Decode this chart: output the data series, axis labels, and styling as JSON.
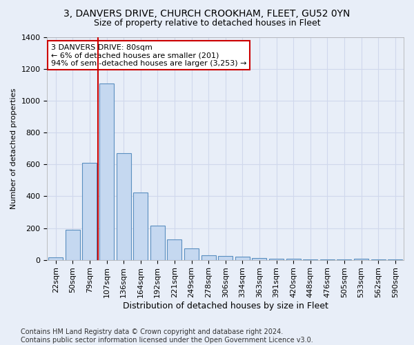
{
  "title1": "3, DANVERS DRIVE, CHURCH CROOKHAM, FLEET, GU52 0YN",
  "title2": "Size of property relative to detached houses in Fleet",
  "xlabel": "Distribution of detached houses by size in Fleet",
  "ylabel": "Number of detached properties",
  "categories": [
    "22sqm",
    "50sqm",
    "79sqm",
    "107sqm",
    "136sqm",
    "164sqm",
    "192sqm",
    "221sqm",
    "249sqm",
    "278sqm",
    "306sqm",
    "334sqm",
    "363sqm",
    "391sqm",
    "420sqm",
    "448sqm",
    "476sqm",
    "505sqm",
    "533sqm",
    "562sqm",
    "590sqm"
  ],
  "values": [
    15,
    190,
    610,
    1110,
    670,
    425,
    215,
    130,
    70,
    30,
    25,
    20,
    10,
    5,
    5,
    3,
    3,
    2,
    5,
    2,
    2
  ],
  "bar_color": "#c5d8f0",
  "bar_edge_color": "#5a8fc0",
  "vline_x": 2.5,
  "vline_color": "#cc0000",
  "annotation_text": "3 DANVERS DRIVE: 80sqm\n← 6% of detached houses are smaller (201)\n94% of semi-detached houses are larger (3,253) →",
  "annotation_box_color": "#ffffff",
  "annotation_border_color": "#cc0000",
  "ylim": [
    0,
    1400
  ],
  "yticks": [
    0,
    200,
    400,
    600,
    800,
    1000,
    1200,
    1400
  ],
  "grid_color": "#d0d8ec",
  "background_color": "#e8eef8",
  "footer_text": "Contains HM Land Registry data © Crown copyright and database right 2024.\nContains public sector information licensed under the Open Government Licence v3.0.",
  "title1_fontsize": 10,
  "title2_fontsize": 9,
  "xlabel_fontsize": 9,
  "ylabel_fontsize": 8,
  "tick_fontsize": 8,
  "footer_fontsize": 7
}
